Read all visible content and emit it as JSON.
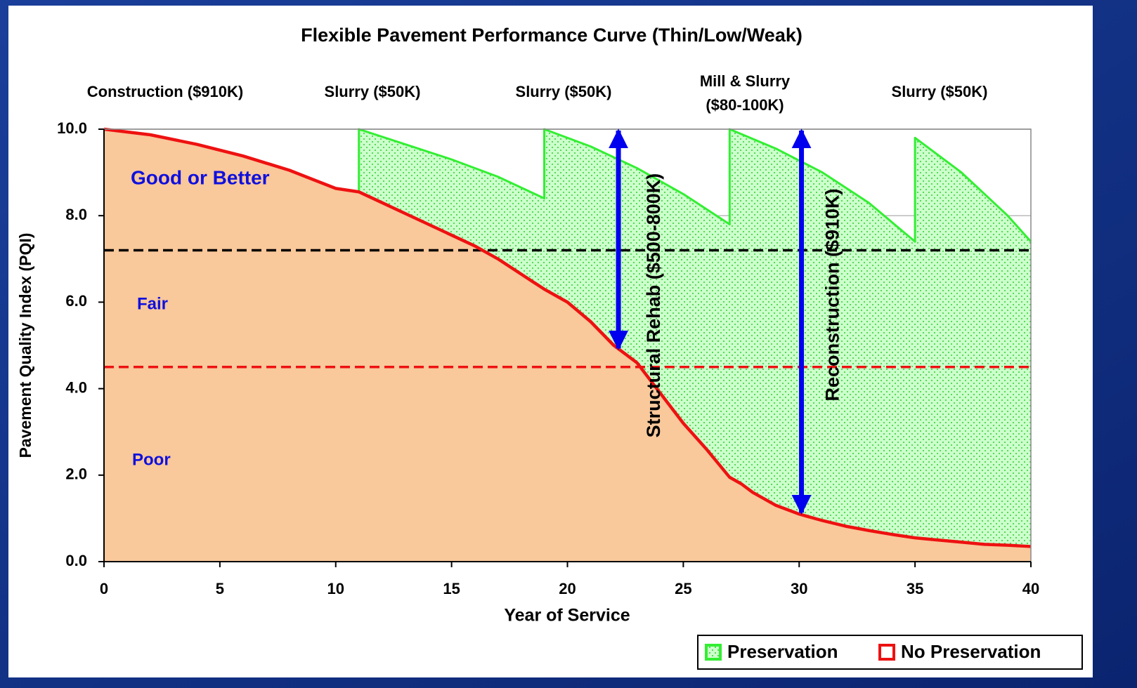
{
  "chart_data": {
    "type": "area",
    "title": "Flexible Pavement Performance Curve (Thin/Low/Weak)",
    "xlabel": "Year of Service",
    "ylabel": "Pavement Quality Index (PQI)",
    "xlim": [
      0,
      40
    ],
    "ylim": [
      0,
      10
    ],
    "xticks": [
      0,
      5,
      10,
      15,
      20,
      25,
      30,
      35,
      40
    ],
    "yticks": [
      {
        "value": 0,
        "label": "0.0"
      },
      {
        "value": 2,
        "label": "2.0"
      },
      {
        "value": 4,
        "label": "4.0"
      },
      {
        "value": 6,
        "label": "6.0"
      },
      {
        "value": 8,
        "label": "8.0"
      },
      {
        "value": 10,
        "label": "10.0"
      }
    ],
    "grid": true,
    "legend": "bottom-right",
    "series": [
      {
        "name": "Preservation",
        "color": "#33ee33",
        "fill": "#ccffcc",
        "x": [
          0,
          2,
          4,
          6,
          8,
          10,
          11,
          11,
          13,
          15,
          17,
          19,
          19,
          21,
          23,
          25,
          27,
          27,
          29,
          31,
          33,
          35,
          35,
          37,
          39,
          40
        ],
        "values": [
          10,
          9.87,
          9.65,
          9.38,
          9.05,
          8.63,
          8.55,
          10,
          9.65,
          9.3,
          8.9,
          8.4,
          10,
          9.6,
          9.1,
          8.5,
          7.8,
          10,
          9.55,
          9.0,
          8.3,
          7.4,
          9.8,
          9.0,
          8.0,
          7.4
        ]
      },
      {
        "name": "No Preservation",
        "color": "#ee1111",
        "fill": "#f9c89b",
        "x": [
          0,
          2,
          4,
          6,
          8,
          10,
          11,
          12,
          13,
          14,
          15,
          16,
          17,
          18,
          19,
          20,
          21,
          22,
          23,
          24,
          25,
          26,
          27,
          27.5,
          28,
          29,
          30,
          31,
          32,
          33,
          34,
          35,
          36,
          37,
          38,
          39,
          40
        ],
        "values": [
          10,
          9.87,
          9.65,
          9.38,
          9.05,
          8.63,
          8.55,
          8.3,
          8.05,
          7.8,
          7.55,
          7.3,
          7.0,
          6.65,
          6.3,
          6.0,
          5.55,
          5.0,
          4.6,
          3.9,
          3.2,
          2.6,
          1.95,
          1.8,
          1.6,
          1.3,
          1.1,
          0.95,
          0.82,
          0.72,
          0.63,
          0.55,
          0.5,
          0.45,
          0.4,
          0.38,
          0.35
        ]
      }
    ],
    "thresholds": [
      {
        "value": 7.2,
        "color": "#000000"
      },
      {
        "value": 4.5,
        "color": "#ee1111"
      }
    ],
    "zones": [
      "Good or Better",
      "Fair",
      "Poor"
    ],
    "annotations": [
      {
        "lines": [
          "Construction ($910K)"
        ]
      },
      {
        "lines": [
          "Slurry ($50K)"
        ]
      },
      {
        "lines": [
          "Slurry ($50K)"
        ]
      },
      {
        "lines": [
          "Mill & Slurry",
          "($80-100K)"
        ]
      },
      {
        "lines": [
          "Slurry ($50K)"
        ]
      }
    ],
    "arrows": [
      {
        "label": "Structural Rehab ($500-800K)",
        "x": 22.2,
        "from": 10,
        "to": 4.9
      },
      {
        "label": "Reconstruction ($910K)",
        "x": 30.1,
        "from": 10,
        "to": 1.1
      }
    ]
  }
}
